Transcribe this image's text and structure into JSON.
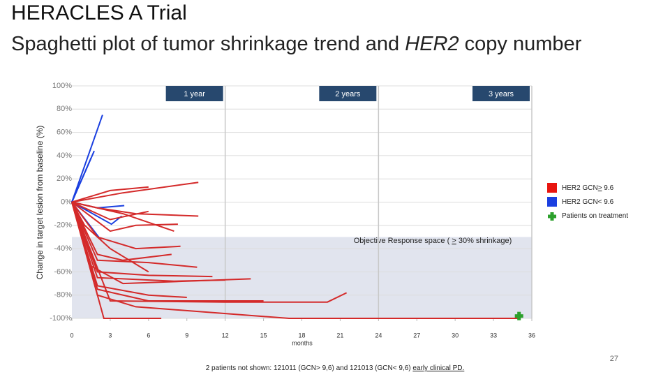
{
  "chart_data": {
    "type": "line",
    "title": "HERACLES A Trial",
    "subtitle_parts": [
      "Spaghetti plot of tumor shrinkage trend and ",
      "HER2",
      " copy number"
    ],
    "ylabel": "Change in target lesion from baseline (%)",
    "xlabel": "months",
    "xlim": [
      0,
      36
    ],
    "xticks": [
      0,
      3,
      6,
      9,
      12,
      15,
      18,
      21,
      24,
      27,
      30,
      33,
      36
    ],
    "ylim": [
      -100,
      100
    ],
    "yticks": [
      {
        "value": -100,
        "label": "-100%"
      },
      {
        "value": -80,
        "label": "-80%"
      },
      {
        "value": -60,
        "label": "-60%"
      },
      {
        "value": -40,
        "label": "-40%"
      },
      {
        "value": -20,
        "label": "-20%"
      },
      {
        "value": 0,
        "label": "0%"
      },
      {
        "value": 20,
        "label": "20%"
      },
      {
        "value": 40,
        "label": "40%"
      },
      {
        "value": 60,
        "label": "60%"
      },
      {
        "value": 80,
        "label": "80%"
      },
      {
        "value": 100,
        "label": "100%"
      }
    ],
    "grid": true,
    "year_lines": [
      12,
      24,
      36
    ],
    "year_labels": [
      "1 year",
      "2 years",
      "3 years"
    ],
    "year_color": "#27486e",
    "response_range": [
      -100,
      -30
    ],
    "response_color": "#e1e4ee",
    "response_label_parts": [
      "Objective Response space ( ",
      ">",
      " 30% shrinkage)"
    ],
    "legend": [
      {
        "label_parts": [
          "HER2 GCN",
          ">",
          " 9.6"
        ],
        "color": "#e8150f"
      },
      {
        "label_parts": [
          "HER2 GCN< 9.6"
        ],
        "color": "#1a3fe0"
      },
      {
        "label_parts": [
          "Patients on treatment"
        ],
        "color": "#2ca02c"
      }
    ],
    "on_treatment": {
      "x": [
        35
      ],
      "values": [
        -98
      ],
      "color": "#2ca02c"
    },
    "series": [
      {
        "color": "#1a3fe0",
        "x": [
          0,
          2.4
        ],
        "values": [
          0,
          75
        ]
      },
      {
        "color": "#1a3fe0",
        "x": [
          0,
          1.75
        ],
        "values": [
          0,
          44
        ]
      },
      {
        "color": "#1a3fe0",
        "x": [
          0,
          1.5
        ],
        "values": [
          0,
          38
        ]
      },
      {
        "color": "#1a3fe0",
        "x": [
          0,
          2,
          4.1
        ],
        "values": [
          0,
          -5,
          -3
        ]
      },
      {
        "color": "#1a3fe0",
        "x": [
          0,
          3.1,
          3.9
        ],
        "values": [
          0,
          -19,
          -12
        ]
      },
      {
        "color": "#1a3fe0",
        "x": [
          0,
          2.3
        ],
        "values": [
          0,
          -33
        ]
      },
      {
        "color": "#d42a2a",
        "x": [
          0,
          3,
          6
        ],
        "values": [
          0,
          10,
          13
        ]
      },
      {
        "color": "#d42a2a",
        "x": [
          0,
          4,
          9.9
        ],
        "values": [
          0,
          8,
          17
        ]
      },
      {
        "color": "#d42a2a",
        "x": [
          0,
          2,
          5,
          9.9
        ],
        "values": [
          0,
          -5,
          -10,
          -12
        ]
      },
      {
        "color": "#d42a2a",
        "x": [
          0,
          3,
          6
        ],
        "values": [
          0,
          -15,
          -8
        ]
      },
      {
        "color": "#d42a2a",
        "x": [
          0,
          3,
          5,
          8.3
        ],
        "values": [
          0,
          -25,
          -20,
          -19
        ]
      },
      {
        "color": "#d42a2a",
        "x": [
          0,
          2,
          5,
          8.5
        ],
        "values": [
          0,
          -30,
          -40,
          -38
        ]
      },
      {
        "color": "#d42a2a",
        "x": [
          0,
          2,
          4,
          7.8
        ],
        "values": [
          0,
          -45,
          -50,
          -45
        ]
      },
      {
        "color": "#d42a2a",
        "x": [
          0,
          2,
          6,
          9.8
        ],
        "values": [
          0,
          -50,
          -52,
          -56
        ]
      },
      {
        "color": "#d42a2a",
        "x": [
          0,
          2,
          6,
          11
        ],
        "values": [
          0,
          -60,
          -63,
          -64
        ]
      },
      {
        "color": "#d42a2a",
        "x": [
          0,
          2,
          8,
          12
        ],
        "values": [
          0,
          -65,
          -68,
          -67
        ]
      },
      {
        "color": "#d42a2a",
        "x": [
          0,
          1.5,
          4,
          14
        ],
        "values": [
          0,
          -55,
          -70,
          -66
        ]
      },
      {
        "color": "#d42a2a",
        "x": [
          0,
          2,
          6,
          9
        ],
        "values": [
          0,
          -72,
          -80,
          -82
        ]
      },
      {
        "color": "#d42a2a",
        "x": [
          0,
          2,
          6,
          15
        ],
        "values": [
          0,
          -75,
          -85,
          -85
        ]
      },
      {
        "color": "#d42a2a",
        "x": [
          0,
          3,
          12,
          20,
          21.5
        ],
        "values": [
          0,
          -85,
          -86,
          -86,
          -78
        ]
      },
      {
        "color": "#d42a2a",
        "x": [
          0,
          2.5,
          7
        ],
        "values": [
          0,
          -100,
          -100
        ]
      },
      {
        "color": "#d42a2a",
        "x": [
          0,
          2,
          5,
          17,
          35
        ],
        "values": [
          0,
          -80,
          -90,
          -100,
          -100
        ]
      },
      {
        "color": "#d42a2a",
        "x": [
          0,
          1,
          3,
          6
        ],
        "values": [
          0,
          -20,
          -40,
          -60
        ]
      },
      {
        "color": "#d42a2a",
        "x": [
          0,
          4,
          8
        ],
        "values": [
          0,
          -10,
          -25
        ]
      }
    ]
  },
  "footnote_parts": [
    "2 patients not shown: 121011 (GCN> 9,6) and 121013 (GCN< 9,6) ",
    "early clinical PD."
  ],
  "page_number": "27"
}
